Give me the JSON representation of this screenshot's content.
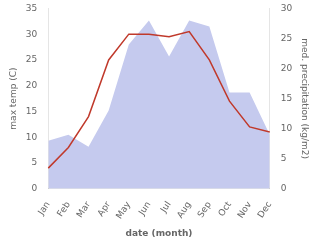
{
  "chart_data": {
    "type": "line",
    "categories": [
      "Jan",
      "Feb",
      "Mar",
      "Apr",
      "May",
      "Jun",
      "Jul",
      "Aug",
      "Sep",
      "Oct",
      "Nov",
      "Dec"
    ],
    "series": [
      {
        "type": "area",
        "color": "#c5caee",
        "axis": "y2",
        "values": [
          8,
          9,
          7,
          13,
          24,
          28,
          22,
          28,
          27,
          16,
          16,
          9
        ]
      },
      {
        "type": "line",
        "color": "#c0392b",
        "values": [
          4,
          8,
          14,
          25,
          30,
          30,
          29.5,
          30.5,
          25,
          17,
          12,
          11
        ]
      }
    ],
    "xlabel": "date (month)",
    "ylabel": "max temp (C)",
    "y2label": "med. precipitation (kg/m2)",
    "ylim": [
      0,
      35
    ],
    "yticks": [
      0,
      5,
      10,
      15,
      20,
      25,
      30,
      35
    ],
    "y2lim": [
      0,
      30
    ],
    "y2ticks": [
      0,
      5,
      10,
      15,
      20,
      25,
      30
    ],
    "grid": false
  }
}
